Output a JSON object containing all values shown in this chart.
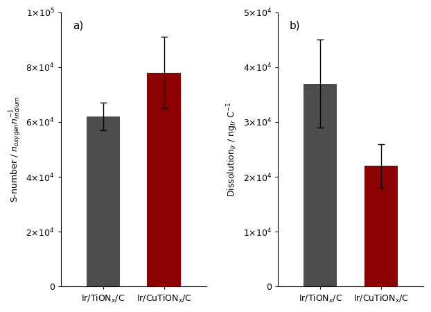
{
  "left": {
    "categories": [
      "Ir/TiON$_x$/C",
      "Ir/CuTiON$_x$/C"
    ],
    "values": [
      62000,
      78000
    ],
    "errors": [
      5000,
      13000
    ],
    "colors": [
      "#4d4d4d",
      "#8b0000"
    ],
    "ylabel": "S-number / $n_{oxygen}n_{iridium}^{-1}$",
    "ylim": [
      0,
      100000
    ],
    "yticks": [
      0,
      20000,
      40000,
      60000,
      80000,
      100000
    ],
    "ytick_labels": [
      "0",
      "2$\\times$10$^4$",
      "4$\\times$10$^4$",
      "6$\\times$10$^4$",
      "8$\\times$10$^4$",
      "1$\\times$10$^5$"
    ],
    "label": "a)"
  },
  "right": {
    "categories": [
      "Ir/TiON$_x$/C",
      "Ir/CuTiON$_x$/C"
    ],
    "values": [
      37000,
      22000
    ],
    "errors": [
      8000,
      4000
    ],
    "colors": [
      "#4d4d4d",
      "#8b0000"
    ],
    "ylabel": "Dissolution$_{Ir}$ / ng$_{Ir}$ C$^{-1}$",
    "ylim": [
      0,
      50000
    ],
    "yticks": [
      0,
      10000,
      20000,
      30000,
      40000,
      50000
    ],
    "ytick_labels": [
      "0",
      "1$\\times$10$^4$",
      "2$\\times$10$^4$",
      "3$\\times$10$^4$",
      "4$\\times$10$^4$",
      "5$\\times$10$^4$"
    ],
    "label": "b)"
  }
}
